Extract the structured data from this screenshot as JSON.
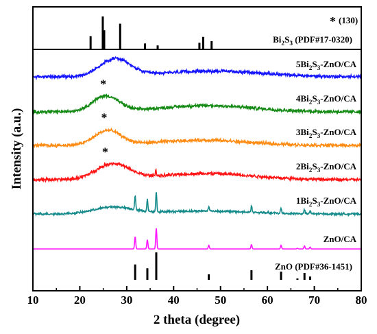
{
  "chart_data": {
    "type": "line",
    "xlabel": "2 theta (degree)",
    "ylabel": "Intensity (a.u.)",
    "xlim": [
      10,
      80
    ],
    "x_ticks": [
      "10",
      "20",
      "30",
      "40",
      "50",
      "60",
      "70",
      "80"
    ],
    "grid": false,
    "legend_note": {
      "symbol": "*",
      "text": "(130)"
    },
    "reference_patterns": [
      {
        "base": "Bi",
        "sub": "2",
        "mid": "S",
        "sub2": "3",
        "rest": " (PDF#17-0320)",
        "peaks": [
          [
            22.3,
            0.4
          ],
          [
            24.9,
            1.0
          ],
          [
            25.2,
            0.58
          ],
          [
            28.6,
            0.78
          ],
          [
            33.9,
            0.18
          ],
          [
            36.6,
            0.12
          ],
          [
            45.5,
            0.2
          ],
          [
            46.3,
            0.38
          ],
          [
            48.1,
            0.25
          ]
        ]
      },
      {
        "text": "ZnO (PDF#36-1451)",
        "peaks": [
          [
            31.8,
            0.56
          ],
          [
            34.4,
            0.42
          ],
          [
            36.3,
            1.0
          ],
          [
            47.5,
            0.2
          ],
          [
            56.6,
            0.35
          ],
          [
            62.9,
            0.3
          ],
          [
            66.4,
            0.05
          ],
          [
            67.9,
            0.25
          ],
          [
            69.1,
            0.12
          ]
        ]
      }
    ],
    "series": [
      {
        "label_prefix": "5Bi",
        "sub": "2",
        "mid": "S",
        "sub2": "3",
        "suffix": "-ZnO/CA",
        "color": "#1515ff",
        "baseline": 0.0,
        "noise": 0.06,
        "humps": [
          [
            27.5,
            3.2,
            0.85
          ],
          [
            48,
            11,
            0.28
          ]
        ],
        "peaks": [],
        "star_x": null
      },
      {
        "label_prefix": "4Bi",
        "sub": "2",
        "mid": "S",
        "sub2": "3",
        "suffix": "-ZnO/CA",
        "color": "#158a15",
        "baseline": 0.0,
        "noise": 0.06,
        "humps": [
          [
            25.5,
            2.8,
            0.75
          ],
          [
            47,
            10,
            0.3
          ]
        ],
        "peaks": [],
        "star_x": 25
      },
      {
        "label_prefix": "3Bi",
        "sub": "2",
        "mid": "S",
        "sub2": "3",
        "suffix": "-ZnO/CA",
        "color": "#ff8c15",
        "baseline": 0.0,
        "noise": 0.06,
        "humps": [
          [
            26,
            2.8,
            0.7
          ],
          [
            46,
            10,
            0.25
          ]
        ],
        "peaks": [],
        "star_x": 25.2
      },
      {
        "label_prefix": "2Bi",
        "sub": "2",
        "mid": "S",
        "sub2": "3",
        "suffix": "-ZnO/CA",
        "color": "#ff1515",
        "baseline": 0.0,
        "noise": 0.06,
        "humps": [
          [
            27,
            3.5,
            0.75
          ],
          [
            47,
            10,
            0.3
          ]
        ],
        "peaks": [
          [
            36.2,
            0.3
          ]
        ],
        "star_x": 25.4
      },
      {
        "label_prefix": "1Bi",
        "sub": "2",
        "mid": "S",
        "sub2": "3",
        "suffix": "-ZnO/CA",
        "color": "#158a8a",
        "baseline": 0.0,
        "noise": 0.05,
        "humps": [
          [
            27,
            4,
            0.4
          ],
          [
            46,
            10,
            0.18
          ]
        ],
        "peaks": [
          [
            31.8,
            0.85
          ],
          [
            34.4,
            0.7
          ],
          [
            36.3,
            1.2
          ],
          [
            47.5,
            0.3
          ],
          [
            56.6,
            0.4
          ],
          [
            62.9,
            0.3
          ],
          [
            67.9,
            0.25
          ],
          [
            69.1,
            0.15
          ]
        ],
        "star_x": null
      },
      {
        "text": "ZnO/CA",
        "color": "#ff15ff",
        "baseline": 0.0,
        "noise": 0.0,
        "humps": [],
        "peaks": [
          [
            31.8,
            1.0
          ],
          [
            34.4,
            0.75
          ],
          [
            36.3,
            1.7
          ],
          [
            47.5,
            0.3
          ],
          [
            56.6,
            0.35
          ],
          [
            62.9,
            0.3
          ],
          [
            66.4,
            0.05
          ],
          [
            67.9,
            0.25
          ],
          [
            69.1,
            0.15
          ]
        ],
        "star_x": null
      }
    ]
  }
}
